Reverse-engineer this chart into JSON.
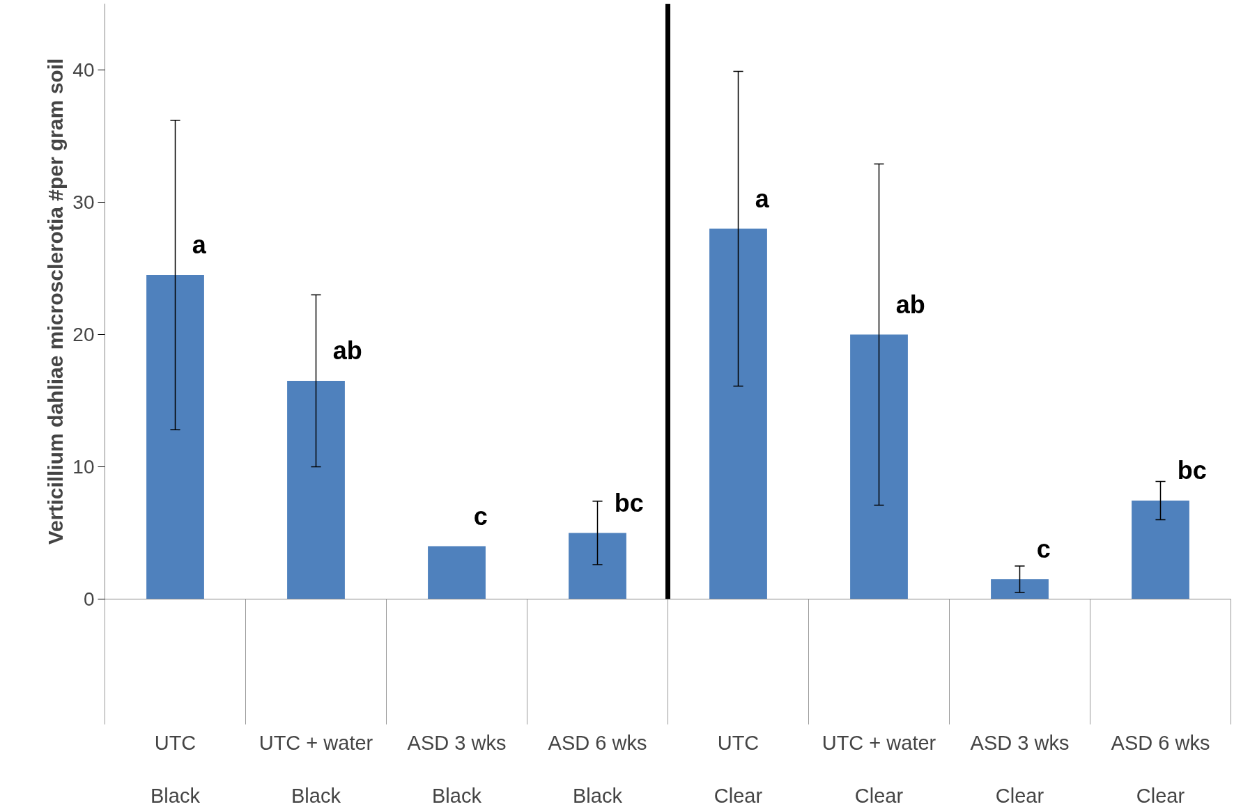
{
  "chart_data": {
    "type": "bar",
    "ylabel": "Verticillium dahliae microsclerotia #per gram soil",
    "categories": [
      "UTC\nBlack",
      "UTC + water\nBlack",
      "ASD 3 wks\nBlack",
      "ASD 6 wks\nBlack",
      "UTC\nClear",
      "UTC + water\nClear",
      "ASD 3 wks\nClear",
      "ASD 6 wks\nClear"
    ],
    "values": [
      24.5,
      16.5,
      4.0,
      5.0,
      28.0,
      20.0,
      1.5,
      7.45
    ],
    "errors": [
      11.7,
      6.5,
      null,
      2.4,
      11.9,
      12.9,
      1.0,
      1.45
    ],
    "value_labels": [
      "a",
      "ab",
      "c",
      "bc",
      "a",
      "ab",
      "c",
      "bc"
    ],
    "color": "#4f81bd",
    "ylim": [
      0,
      45
    ],
    "yticks": [
      0,
      10,
      20,
      30,
      40
    ],
    "grid": false
  }
}
